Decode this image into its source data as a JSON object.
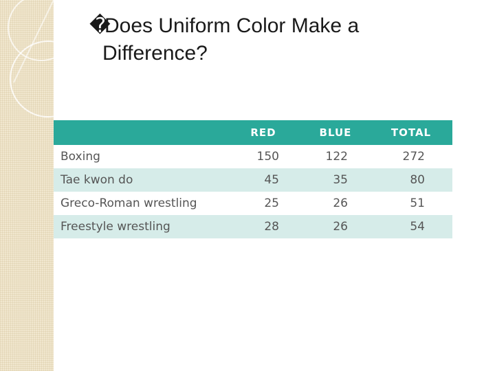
{
  "slide": {
    "bullet": "�",
    "title_line1": "Does Uniform Color Make a",
    "title_line2": "Difference?"
  },
  "table": {
    "headers": [
      "",
      "RED",
      "BLUE",
      "TOTAL"
    ],
    "rows": [
      {
        "label": "Boxing",
        "red": "150",
        "blue": "122",
        "total": "272"
      },
      {
        "label": "Tae kwon do",
        "red": "45",
        "blue": "35",
        "total": "80"
      },
      {
        "label": "Greco-Roman wrestling",
        "red": "25",
        "blue": "26",
        "total": "51"
      },
      {
        "label": "Freestyle wrestling",
        "red": "28",
        "blue": "26",
        "total": "54"
      }
    ],
    "colors": {
      "header_bg": "#2aa99a",
      "stripe_bg": "#d6ece9",
      "side_band": "#f1e7cf"
    }
  }
}
